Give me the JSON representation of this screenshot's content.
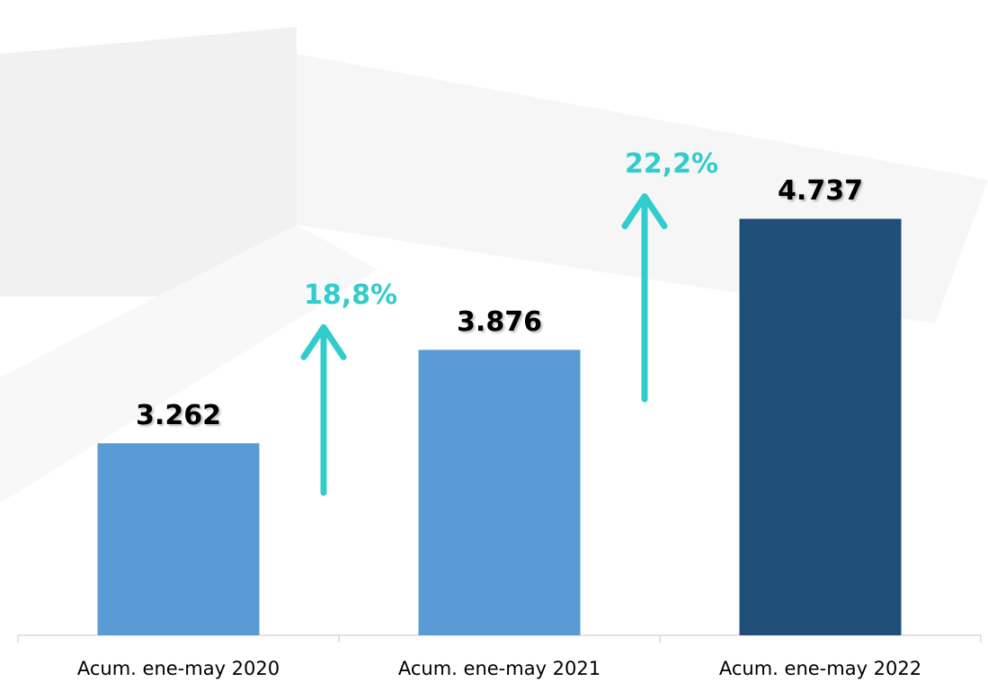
{
  "chart_data": {
    "type": "bar",
    "categories": [
      "Acum. ene-may 2020",
      "Acum. ene-may 2021",
      "Acum. ene-may 2022"
    ],
    "values": [
      3262,
      3876,
      4737
    ],
    "value_labels": [
      "3.262",
      "3.876",
      "4.737"
    ],
    "colors": [
      "#5b9bd5",
      "#5b9bd5",
      "#1f4e79"
    ],
    "ylim": [
      2000,
      5000
    ],
    "growth": {
      "values": [
        18.8,
        22.2
      ],
      "value_labels": [
        "18,8%",
        "22,2%"
      ],
      "color": "#33cccc"
    }
  }
}
